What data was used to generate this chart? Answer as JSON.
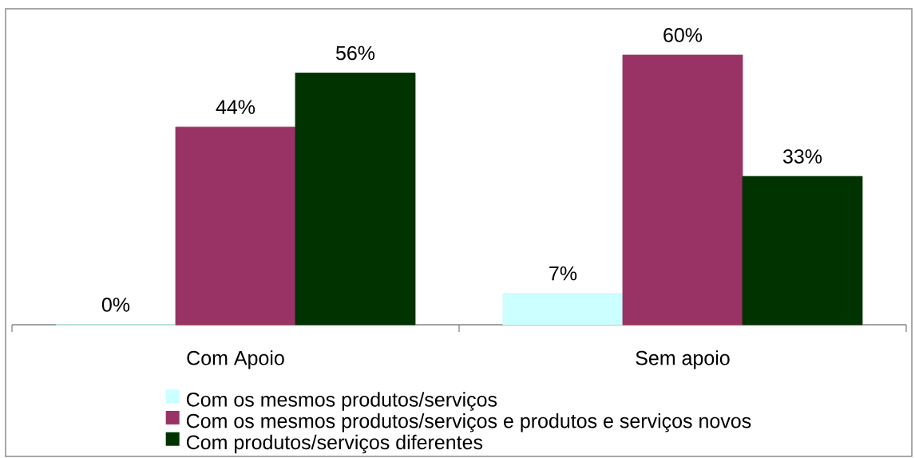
{
  "chart_data": {
    "type": "bar",
    "categories": [
      "Com Apoio",
      "Sem apoio"
    ],
    "series": [
      {
        "name": "Com os mesmos produtos/serviços",
        "color": "#ccffff",
        "values": [
          0,
          7
        ],
        "value_labels": [
          "0%",
          "7%"
        ]
      },
      {
        "name": "Com os mesmos produtos/serviços e produtos e serviços novos",
        "color": "#993366",
        "values": [
          44,
          60
        ],
        "value_labels": [
          "44%",
          "60%"
        ]
      },
      {
        "name": "Com produtos/serviços diferentes",
        "color": "#003300",
        "values": [
          56,
          33
        ],
        "value_labels": [
          "56%",
          "33%"
        ]
      }
    ],
    "legend": "bottom",
    "tick_labels": "x"
  }
}
